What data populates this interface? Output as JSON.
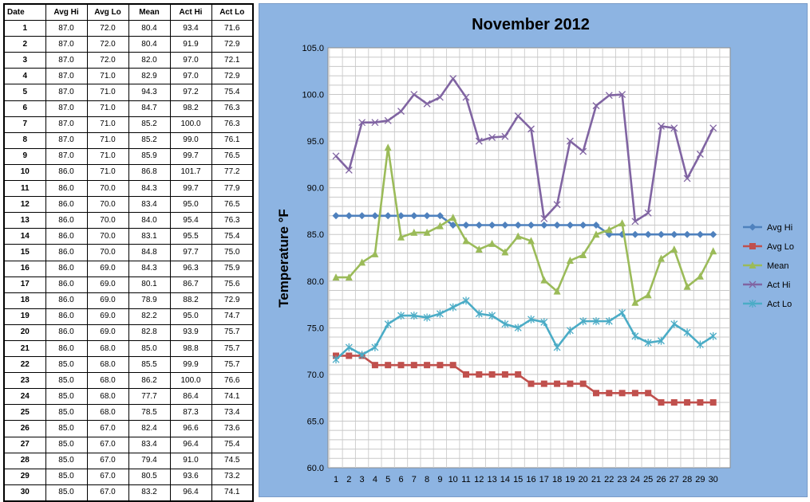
{
  "table": {
    "headers": [
      "Date",
      "Avg Hi",
      "Avg Lo",
      "Mean",
      "Act Hi",
      "Act Lo"
    ],
    "rows": [
      [
        "1",
        "87.0",
        "72.0",
        "80.4",
        "93.4",
        "71.6"
      ],
      [
        "2",
        "87.0",
        "72.0",
        "80.4",
        "91.9",
        "72.9"
      ],
      [
        "3",
        "87.0",
        "72.0",
        "82.0",
        "97.0",
        "72.1"
      ],
      [
        "4",
        "87.0",
        "71.0",
        "82.9",
        "97.0",
        "72.9"
      ],
      [
        "5",
        "87.0",
        "71.0",
        "94.3",
        "97.2",
        "75.4"
      ],
      [
        "6",
        "87.0",
        "71.0",
        "84.7",
        "98.2",
        "76.3"
      ],
      [
        "7",
        "87.0",
        "71.0",
        "85.2",
        "100.0",
        "76.3"
      ],
      [
        "8",
        "87.0",
        "71.0",
        "85.2",
        "99.0",
        "76.1"
      ],
      [
        "9",
        "87.0",
        "71.0",
        "85.9",
        "99.7",
        "76.5"
      ],
      [
        "10",
        "86.0",
        "71.0",
        "86.8",
        "101.7",
        "77.2"
      ],
      [
        "11",
        "86.0",
        "70.0",
        "84.3",
        "99.7",
        "77.9"
      ],
      [
        "12",
        "86.0",
        "70.0",
        "83.4",
        "95.0",
        "76.5"
      ],
      [
        "13",
        "86.0",
        "70.0",
        "84.0",
        "95.4",
        "76.3"
      ],
      [
        "14",
        "86.0",
        "70.0",
        "83.1",
        "95.5",
        "75.4"
      ],
      [
        "15",
        "86.0",
        "70.0",
        "84.8",
        "97.7",
        "75.0"
      ],
      [
        "16",
        "86.0",
        "69.0",
        "84.3",
        "96.3",
        "75.9"
      ],
      [
        "17",
        "86.0",
        "69.0",
        "80.1",
        "86.7",
        "75.6"
      ],
      [
        "18",
        "86.0",
        "69.0",
        "78.9",
        "88.2",
        "72.9"
      ],
      [
        "19",
        "86.0",
        "69.0",
        "82.2",
        "95.0",
        "74.7"
      ],
      [
        "20",
        "86.0",
        "69.0",
        "82.8",
        "93.9",
        "75.7"
      ],
      [
        "21",
        "86.0",
        "68.0",
        "85.0",
        "98.8",
        "75.7"
      ],
      [
        "22",
        "85.0",
        "68.0",
        "85.5",
        "99.9",
        "75.7"
      ],
      [
        "23",
        "85.0",
        "68.0",
        "86.2",
        "100.0",
        "76.6"
      ],
      [
        "24",
        "85.0",
        "68.0",
        "77.7",
        "86.4",
        "74.1"
      ],
      [
        "25",
        "85.0",
        "68.0",
        "78.5",
        "87.3",
        "73.4"
      ],
      [
        "26",
        "85.0",
        "67.0",
        "82.4",
        "96.6",
        "73.6"
      ],
      [
        "27",
        "85.0",
        "67.0",
        "83.4",
        "96.4",
        "75.4"
      ],
      [
        "28",
        "85.0",
        "67.0",
        "79.4",
        "91.0",
        "74.5"
      ],
      [
        "29",
        "85.0",
        "67.0",
        "80.5",
        "93.6",
        "73.2"
      ],
      [
        "30",
        "85.0",
        "67.0",
        "83.2",
        "96.4",
        "74.1"
      ]
    ]
  },
  "chart_data": {
    "type": "line",
    "title": "November 2012",
    "xlabel": "",
    "ylabel": "Temperature °F",
    "x": [
      1,
      2,
      3,
      4,
      5,
      6,
      7,
      8,
      9,
      10,
      11,
      12,
      13,
      14,
      15,
      16,
      17,
      18,
      19,
      20,
      21,
      22,
      23,
      24,
      25,
      26,
      27,
      28,
      29,
      30
    ],
    "ylim": [
      60,
      105
    ],
    "yticks": [
      "60.0",
      "65.0",
      "70.0",
      "75.0",
      "80.0",
      "85.0",
      "90.0",
      "95.0",
      "100.0",
      "105.0"
    ],
    "grid": true,
    "legend": "right",
    "series": [
      {
        "name": "Avg Hi",
        "color": "#4f81bd",
        "marker": "diamond",
        "values": [
          87,
          87,
          87,
          87,
          87,
          87,
          87,
          87,
          87,
          86,
          86,
          86,
          86,
          86,
          86,
          86,
          86,
          86,
          86,
          86,
          86,
          85,
          85,
          85,
          85,
          85,
          85,
          85,
          85,
          85
        ]
      },
      {
        "name": "Avg Lo",
        "color": "#c0504d",
        "marker": "square",
        "values": [
          72,
          72,
          72,
          71,
          71,
          71,
          71,
          71,
          71,
          71,
          70,
          70,
          70,
          70,
          70,
          69,
          69,
          69,
          69,
          69,
          68,
          68,
          68,
          68,
          68,
          67,
          67,
          67,
          67,
          67
        ]
      },
      {
        "name": "Mean",
        "color": "#9bbb59",
        "marker": "triangle",
        "values": [
          80.4,
          80.4,
          82.0,
          82.9,
          94.3,
          84.7,
          85.2,
          85.2,
          85.9,
          86.8,
          84.3,
          83.4,
          84.0,
          83.1,
          84.8,
          84.3,
          80.1,
          78.9,
          82.2,
          82.8,
          85.0,
          85.5,
          86.2,
          77.7,
          78.5,
          82.4,
          83.4,
          79.4,
          80.5,
          83.2
        ]
      },
      {
        "name": "Act Hi",
        "color": "#8064a2",
        "marker": "x",
        "values": [
          93.4,
          91.9,
          97.0,
          97.0,
          97.2,
          98.2,
          100.0,
          99.0,
          99.7,
          101.7,
          99.7,
          95.0,
          95.4,
          95.5,
          97.7,
          96.3,
          86.7,
          88.2,
          95.0,
          93.9,
          98.8,
          99.9,
          100.0,
          86.4,
          87.3,
          96.6,
          96.4,
          91.0,
          93.6,
          96.4
        ]
      },
      {
        "name": "Act Lo",
        "color": "#4bacc6",
        "marker": "star",
        "values": [
          71.6,
          72.9,
          72.1,
          72.9,
          75.4,
          76.3,
          76.3,
          76.1,
          76.5,
          77.2,
          77.9,
          76.5,
          76.3,
          75.4,
          75.0,
          75.9,
          75.6,
          72.9,
          74.7,
          75.7,
          75.7,
          75.7,
          76.6,
          74.1,
          73.4,
          73.6,
          75.4,
          74.5,
          73.2,
          74.1
        ]
      }
    ]
  }
}
